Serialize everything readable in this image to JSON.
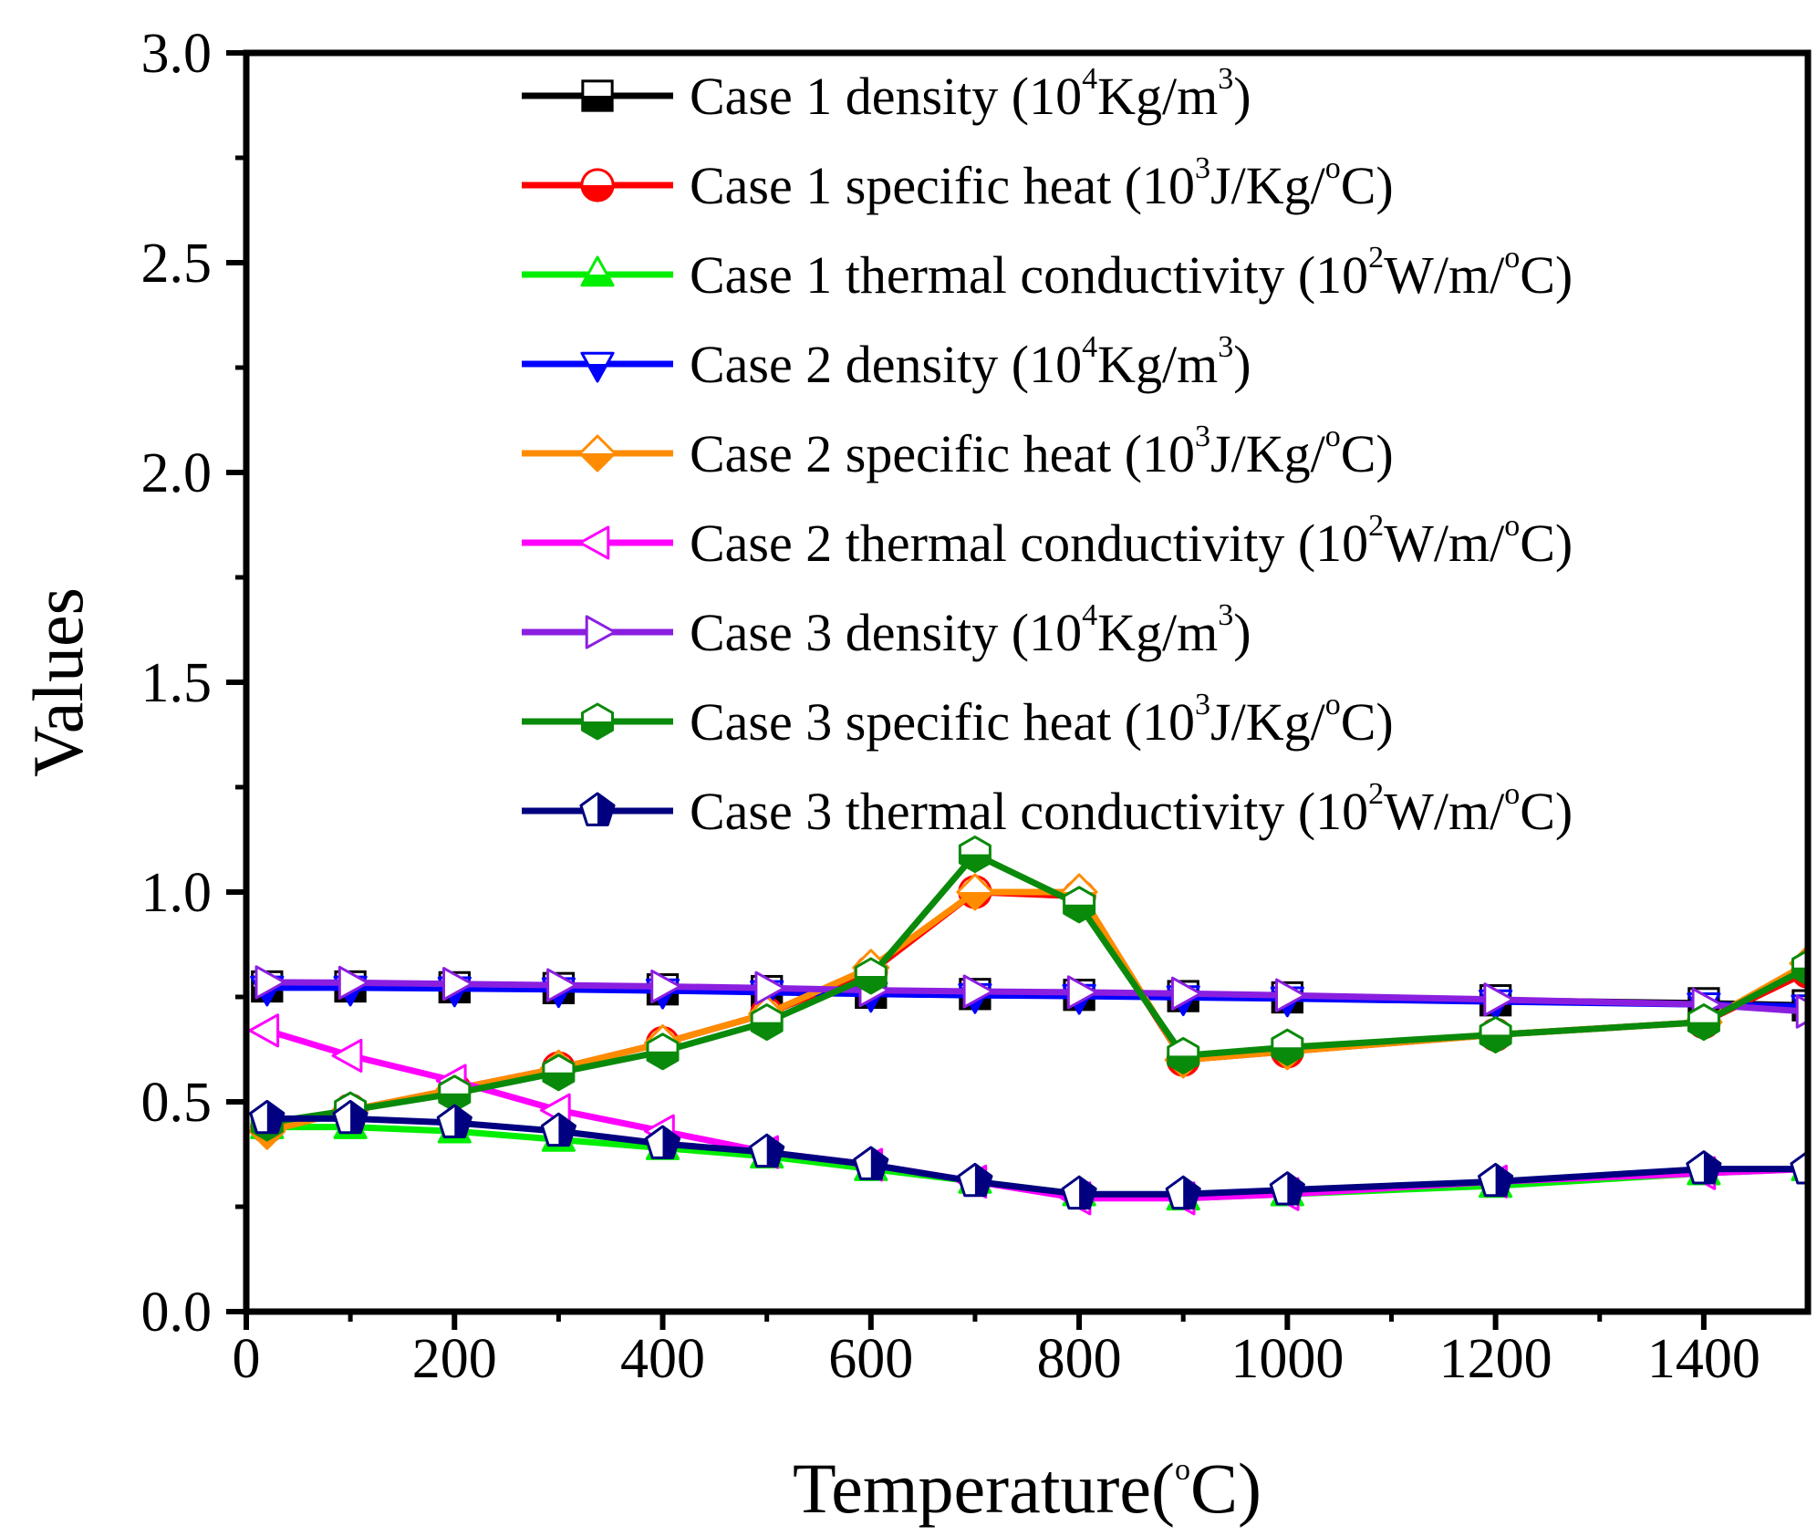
{
  "chart_data": {
    "type": "line",
    "title": "",
    "xlabel": {
      "text": "Temperature(",
      "sup": "o",
      "tail": "C)"
    },
    "ylabel": "Values",
    "xlim": [
      0,
      1500
    ],
    "ylim": [
      0,
      3.0
    ],
    "xticks": [
      0,
      200,
      400,
      600,
      800,
      1000,
      1200,
      1400
    ],
    "xtick_labels": [
      "0",
      "200",
      "400",
      "600",
      "800",
      "1000",
      "1200",
      "1400"
    ],
    "yticks": [
      0,
      0.5,
      1.0,
      1.5,
      2.0,
      2.5,
      3.0
    ],
    "ytick_labels": [
      "0.0",
      "0.5",
      "1.0",
      "1.5",
      "2.0",
      "2.5",
      "3.0"
    ],
    "grid": false,
    "legend_position": "top-right",
    "series": [
      {
        "name": "Case 1 density (10^4Kg/m^3)",
        "legend": [
          [
            "Case 1 density (10",
            ""
          ],
          [
            "4",
            "sup"
          ],
          [
            "Kg/m",
            ""
          ],
          [
            "3",
            "sup"
          ],
          [
            ")",
            ""
          ]
        ],
        "color": "#000000",
        "marker": "square",
        "x": [
          20,
          100,
          200,
          300,
          400,
          500,
          600,
          700,
          800,
          900,
          1000,
          1200,
          1400,
          1500
        ],
        "y": [
          0.775,
          0.775,
          0.773,
          0.771,
          0.768,
          0.764,
          0.76,
          0.757,
          0.755,
          0.752,
          0.749,
          0.742,
          0.735,
          0.73
        ]
      },
      {
        "name": "Case 1 specific heat (10^3J/Kg/oC)",
        "legend": [
          [
            "Case 1 specific heat (10",
            ""
          ],
          [
            "3",
            "sup"
          ],
          [
            "J/Kg/",
            ""
          ],
          [
            "o",
            "sup"
          ],
          [
            "C)",
            ""
          ]
        ],
        "color": "#ff0000",
        "marker": "circle",
        "x": [
          20,
          100,
          200,
          300,
          400,
          500,
          600,
          700,
          800,
          900,
          1000,
          1200,
          1400,
          1500
        ],
        "y": [
          0.44,
          0.48,
          0.53,
          0.58,
          0.64,
          0.71,
          0.81,
          1.0,
          0.99,
          0.6,
          0.62,
          0.66,
          0.69,
          0.81
        ]
      },
      {
        "name": "Case 1 thermal conductivity (10^2W/m/oC)",
        "legend": [
          [
            "Case 1 thermal conductivity (10",
            ""
          ],
          [
            "2",
            "sup"
          ],
          [
            "W/m/",
            ""
          ],
          [
            "o",
            "sup"
          ],
          [
            "C)",
            ""
          ]
        ],
        "color": "#00ee00",
        "marker": "triangle-up",
        "x": [
          20,
          100,
          200,
          300,
          400,
          500,
          600,
          700,
          800,
          900,
          1000,
          1200,
          1400,
          1500
        ],
        "y": [
          0.44,
          0.44,
          0.43,
          0.41,
          0.39,
          0.37,
          0.34,
          0.31,
          0.28,
          0.27,
          0.28,
          0.3,
          0.33,
          0.34
        ]
      },
      {
        "name": "Case 2 density (10^4Kg/m^3)",
        "legend": [
          [
            "Case 2 density (10",
            ""
          ],
          [
            "4",
            "sup"
          ],
          [
            "Kg/m",
            ""
          ],
          [
            "3",
            "sup"
          ],
          [
            ")",
            ""
          ]
        ],
        "color": "#0000ff",
        "marker": "triangle-down",
        "x": [
          20,
          100,
          200,
          300,
          400,
          500,
          600,
          700,
          800,
          900,
          1000,
          1200,
          1400,
          1500
        ],
        "y": [
          0.772,
          0.772,
          0.77,
          0.768,
          0.765,
          0.761,
          0.757,
          0.754,
          0.752,
          0.749,
          0.746,
          0.739,
          0.732,
          0.727
        ]
      },
      {
        "name": "Case 2 specific heat (10^3J/Kg/oC)",
        "legend": [
          [
            "Case 2 specific heat (10",
            ""
          ],
          [
            "3",
            "sup"
          ],
          [
            "J/Kg/",
            ""
          ],
          [
            "o",
            "sup"
          ],
          [
            "C)",
            ""
          ]
        ],
        "color": "#ff8c00",
        "marker": "diamond",
        "x": [
          20,
          100,
          200,
          300,
          400,
          500,
          600,
          700,
          800,
          900,
          1000,
          1200,
          1400,
          1500
        ],
        "y": [
          0.43,
          0.48,
          0.53,
          0.58,
          0.64,
          0.71,
          0.82,
          1.0,
          1.0,
          0.6,
          0.62,
          0.66,
          0.69,
          0.83
        ]
      },
      {
        "name": "Case 2 thermal conductivity (10^2W/m/oC)",
        "legend": [
          [
            "Case 2 thermal conductivity (10",
            ""
          ],
          [
            "2",
            "sup"
          ],
          [
            "W/m/",
            ""
          ],
          [
            "o",
            "sup"
          ],
          [
            "C)",
            ""
          ]
        ],
        "color": "#ff00ff",
        "marker": "triangle-left",
        "x": [
          20,
          100,
          200,
          300,
          400,
          500,
          600,
          700,
          800,
          900,
          1000,
          1200,
          1400,
          1500
        ],
        "y": [
          0.67,
          0.61,
          0.55,
          0.48,
          0.43,
          0.38,
          0.35,
          0.31,
          0.27,
          0.27,
          0.28,
          0.31,
          0.33,
          0.34
        ]
      },
      {
        "name": "Case 3 density (10^4Kg/m^3)",
        "legend": [
          [
            "Case 3 density (10",
            ""
          ],
          [
            "4",
            "sup"
          ],
          [
            "Kg/m",
            ""
          ],
          [
            "3",
            "sup"
          ],
          [
            ")",
            ""
          ]
        ],
        "color": "#8b1fe0",
        "marker": "triangle-right",
        "x": [
          20,
          100,
          200,
          300,
          400,
          500,
          600,
          700,
          800,
          900,
          1000,
          1200,
          1400,
          1500
        ],
        "y": [
          0.785,
          0.784,
          0.781,
          0.778,
          0.775,
          0.771,
          0.766,
          0.763,
          0.761,
          0.758,
          0.754,
          0.744,
          0.732,
          0.715
        ]
      },
      {
        "name": "Case 3 specific heat (10^3J/Kg/oC)",
        "legend": [
          [
            "Case 3 specific heat (10",
            ""
          ],
          [
            "3",
            "sup"
          ],
          [
            "J/Kg/",
            ""
          ],
          [
            "o",
            "sup"
          ],
          [
            "C)",
            ""
          ]
        ],
        "color": "#0a8a0a",
        "marker": "hexagon",
        "x": [
          20,
          100,
          200,
          300,
          400,
          500,
          600,
          700,
          800,
          900,
          1000,
          1200,
          1400,
          1500
        ],
        "y": [
          0.45,
          0.48,
          0.52,
          0.57,
          0.62,
          0.69,
          0.8,
          1.09,
          0.97,
          0.61,
          0.63,
          0.66,
          0.69,
          0.82
        ]
      },
      {
        "name": "Case 3 thermal conductivity (10^2W/m/oC)",
        "legend": [
          [
            "Case 3 thermal conductivity (10",
            ""
          ],
          [
            "2",
            "sup"
          ],
          [
            "W/m/",
            ""
          ],
          [
            "o",
            "sup"
          ],
          [
            "C)",
            ""
          ]
        ],
        "color": "#000080",
        "marker": "pentagon",
        "x": [
          20,
          100,
          200,
          300,
          400,
          500,
          600,
          700,
          800,
          900,
          1000,
          1200,
          1400,
          1500
        ],
        "y": [
          0.46,
          0.46,
          0.45,
          0.43,
          0.4,
          0.38,
          0.35,
          0.31,
          0.28,
          0.28,
          0.29,
          0.31,
          0.34,
          0.34
        ]
      }
    ]
  }
}
